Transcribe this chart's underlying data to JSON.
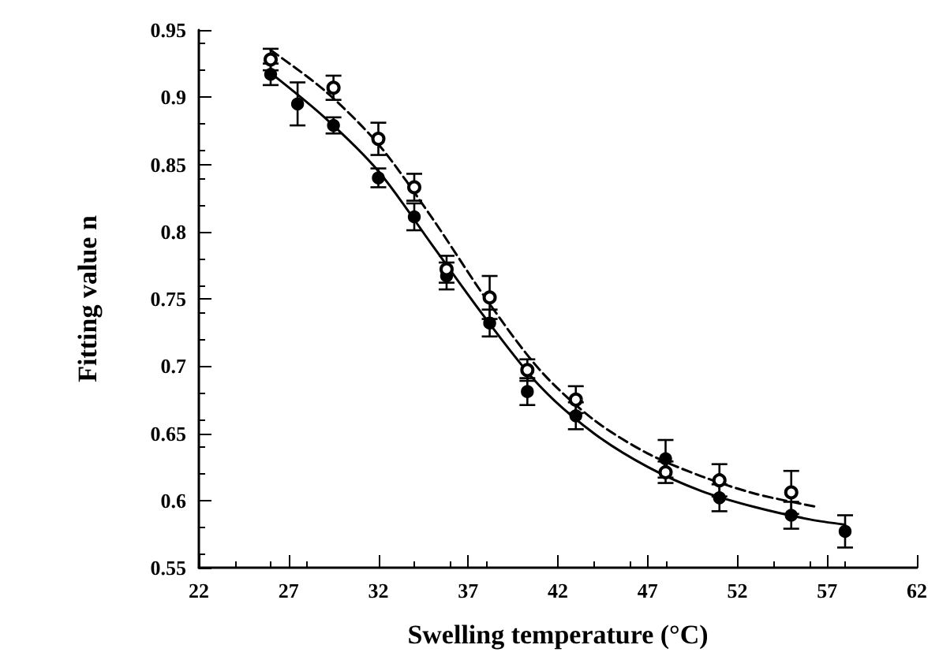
{
  "chart_data": {
    "type": "scatter",
    "xlabel": "Swelling temperature (°C)",
    "ylabel": "Fitting value n",
    "xlim": [
      22,
      62
    ],
    "xticks": [
      22,
      27,
      32,
      37,
      42,
      47,
      52,
      57,
      62
    ],
    "ylim": [
      0.55,
      0.95
    ],
    "yticks": [
      0.55,
      0.6,
      0.65,
      0.7,
      0.75,
      0.8,
      0.85,
      0.9,
      0.95
    ],
    "grid": false,
    "series": [
      {
        "marker": "circle",
        "color": "#000000",
        "x": [
          26,
          27.5,
          29.5,
          32,
          34,
          35.8,
          38.2,
          40.3,
          43,
          48,
          51,
          55,
          58
        ],
        "values": [
          0.917,
          0.895,
          0.879,
          0.84,
          0.811,
          0.767,
          0.732,
          0.681,
          0.663,
          0.631,
          0.602,
          0.589,
          0.577
        ],
        "errors": [
          0.008,
          0.016,
          0.006,
          0.007,
          0.01,
          0.01,
          0.01,
          0.01,
          0.01,
          0.014,
          0.01,
          0.01,
          0.012
        ]
      },
      {
        "marker": "open circle",
        "color": "#000000",
        "x": [
          26,
          29.5,
          32,
          34,
          35.8,
          38.2,
          40.3,
          43,
          48,
          51,
          55
        ],
        "values": [
          0.928,
          0.907,
          0.869,
          0.833,
          0.772,
          0.751,
          0.697,
          0.675,
          0.621,
          0.615,
          0.606
        ],
        "errors": [
          0.008,
          0.009,
          0.012,
          0.01,
          0.01,
          0.016,
          0.008,
          0.01,
          0.008,
          0.012,
          0.016
        ]
      },
      {
        "type": "line",
        "marker": "none",
        "line_style": "solid",
        "color": "#000000",
        "x": [
          26,
          29,
          32,
          35,
          38,
          41,
          44,
          47,
          50,
          53,
          56,
          58
        ],
        "values": [
          0.918,
          0.885,
          0.845,
          0.79,
          0.735,
          0.685,
          0.65,
          0.625,
          0.607,
          0.595,
          0.586,
          0.582
        ]
      },
      {
        "type": "line",
        "marker": "none",
        "line_style": "dashed",
        "color": "#000000",
        "x": [
          26,
          29,
          32,
          35,
          38,
          41,
          44,
          47,
          50,
          53,
          56.5
        ],
        "values": [
          0.935,
          0.905,
          0.865,
          0.81,
          0.75,
          0.697,
          0.66,
          0.635,
          0.618,
          0.605,
          0.595
        ]
      }
    ]
  }
}
